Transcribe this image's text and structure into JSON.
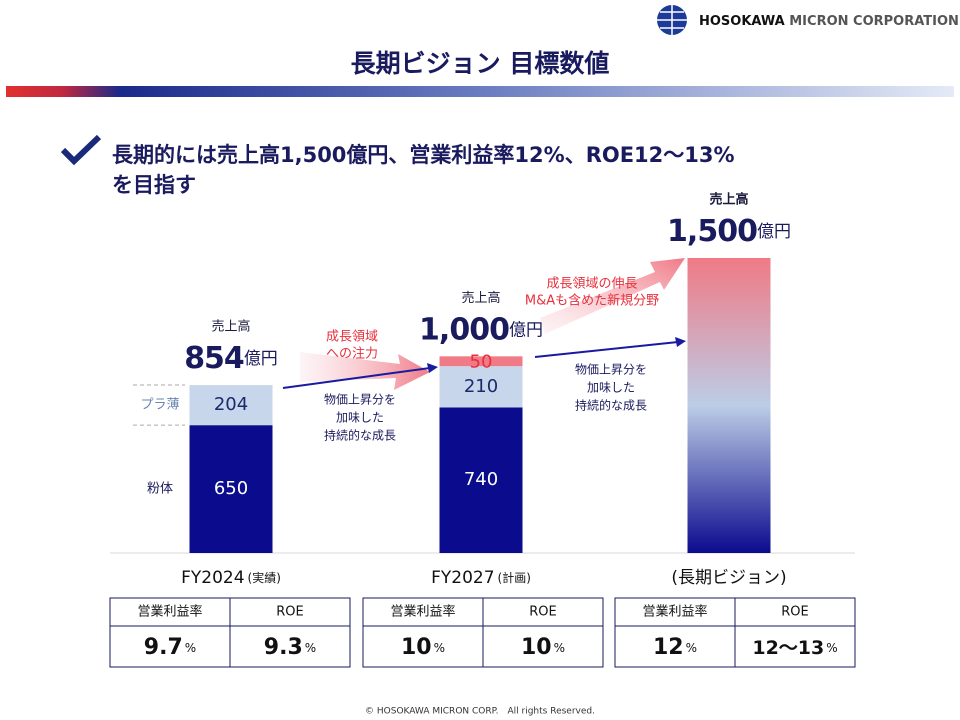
{
  "header": {
    "brand_bold": "HOSOKAWA",
    "brand_rest": "MICRON CORPORATION"
  },
  "title": "長期ビジョン 目標数値",
  "message": [
    "長期的には売上高1,500億円、営業利益率12%、ROE12～13%",
    "を目指す"
  ],
  "chart_data": {
    "type": "stacked_bar",
    "categories": [
      "FY2024",
      "FY2027",
      "(長期ビジョン)"
    ],
    "category_notes": [
      "(実績)",
      "(計画)",
      null
    ],
    "ylim": [
      0,
      1500
    ],
    "series": [
      {
        "name": "粉体",
        "color": "#0b0b8e",
        "label_color": "#ffffff",
        "values": [
          650,
          740,
          null
        ]
      },
      {
        "name": "プラ薄",
        "color": "#c7d6ea",
        "label_color": "#1a2a6a",
        "values": [
          204,
          210,
          null
        ]
      },
      {
        "color": "#f07a86",
        "label_color": "#e8303c",
        "values": [
          null,
          50,
          null
        ]
      },
      {
        "gradient": [
          "#f07a86",
          "#bccde6",
          "#0b0b8e"
        ],
        "values": [
          null,
          null,
          1500
        ]
      }
    ],
    "totals": {
      "label": "売上高",
      "unit": "億円",
      "values": [
        854,
        1000,
        1500
      ],
      "value_labels": [
        "854",
        "1,000",
        "1,500"
      ]
    },
    "annotations": {
      "growth_focus": [
        "成長領域",
        "への注力"
      ],
      "price_growth": [
        "物価上昇分を",
        "加味した",
        "持続的な成長"
      ],
      "new_fields": [
        "成長領域の伸長",
        "M&Aも含めた新規分野"
      ]
    }
  },
  "metrics": {
    "headers": [
      "営業利益率",
      "ROE"
    ],
    "unit": "%",
    "rows": [
      [
        "9.7",
        "9.3"
      ],
      [
        "10",
        "10"
      ],
      [
        "12",
        "12～13"
      ]
    ]
  },
  "footer": "© HOSOKAWA MICRON CORP.　All rights Reserved."
}
